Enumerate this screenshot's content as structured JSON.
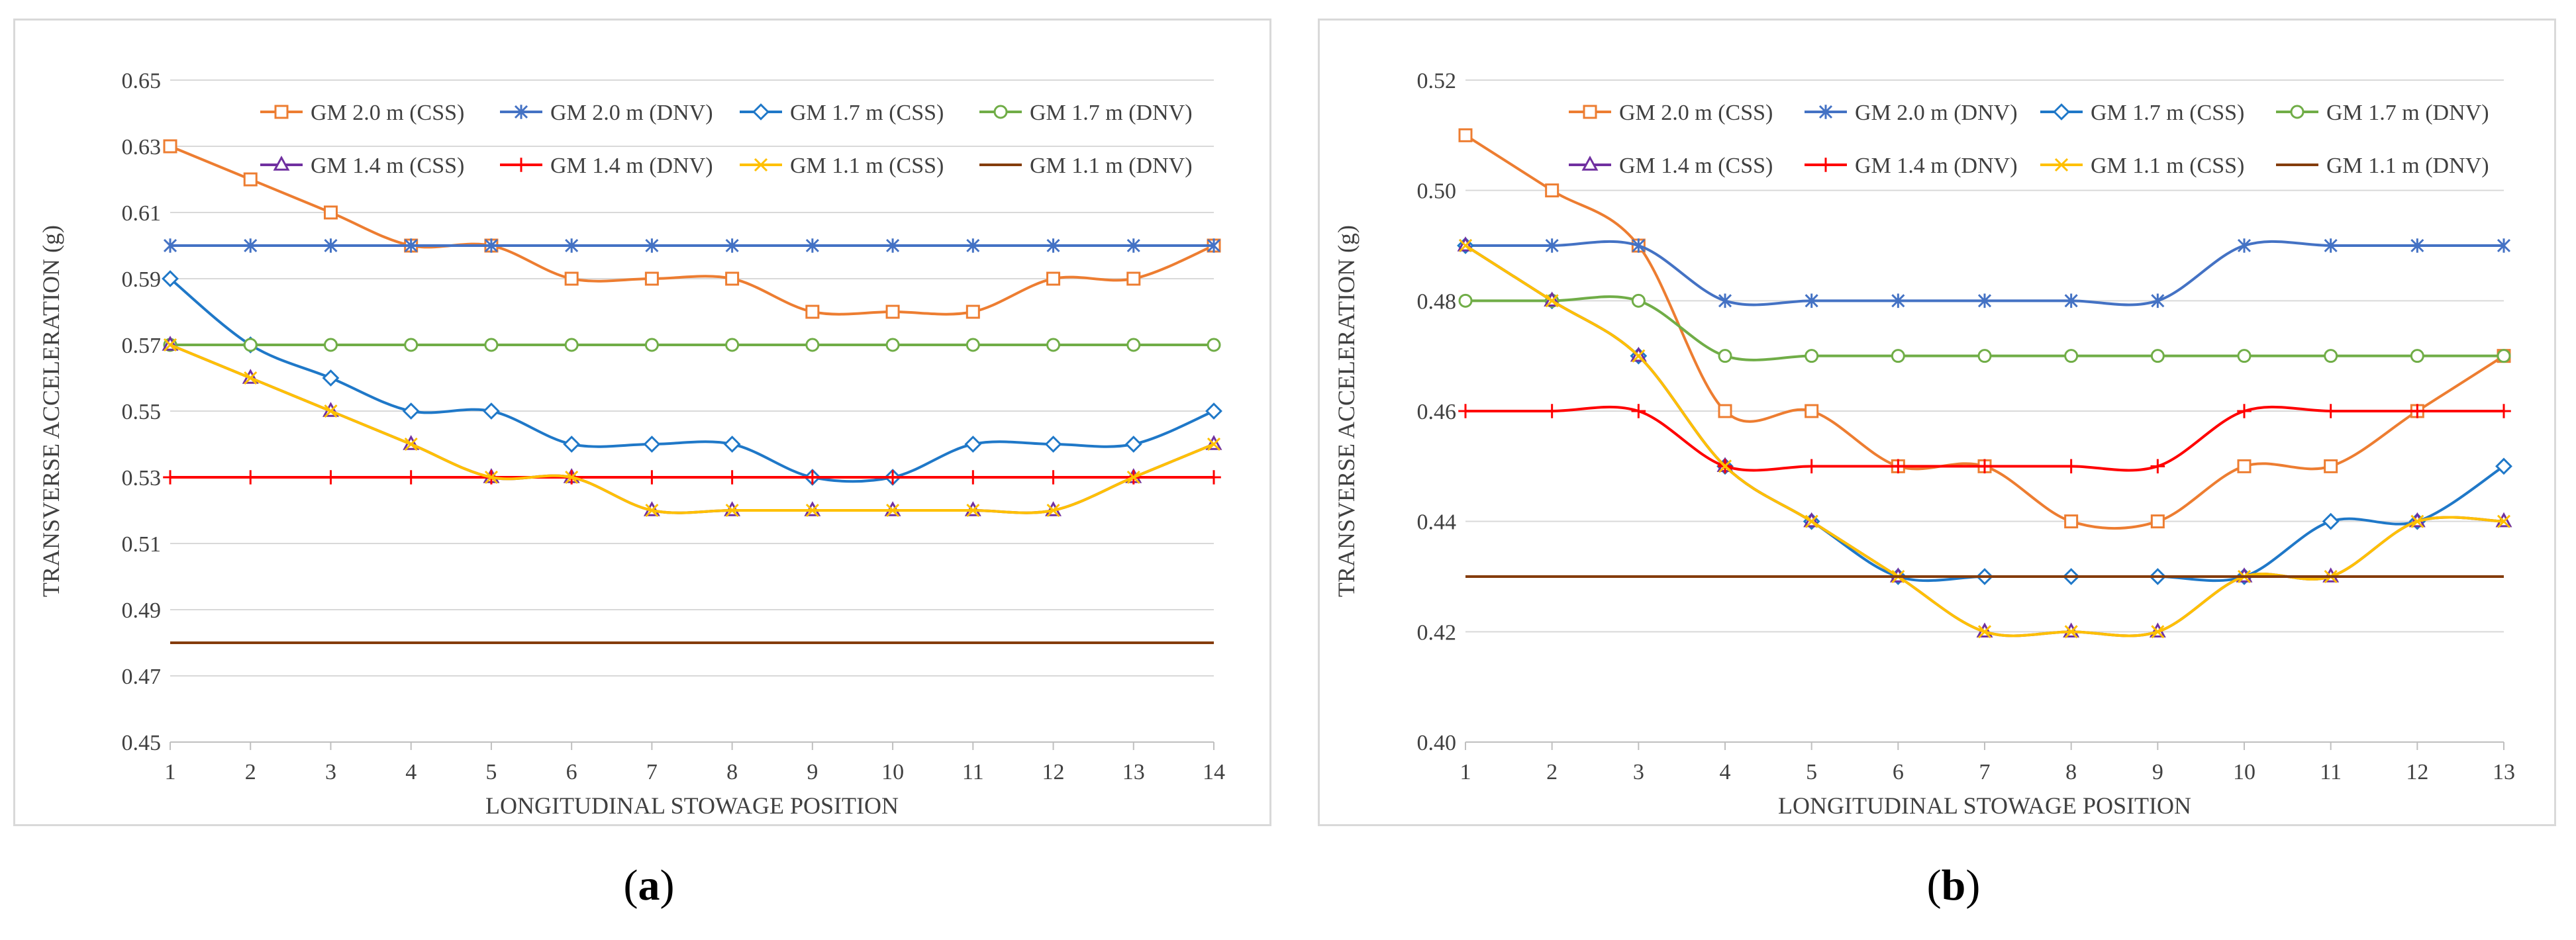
{
  "chart_data": [
    {
      "type": "line",
      "xlabel": "LONGITUDINAL STOWAGE POSITION",
      "ylabel": "TRANSVERSE ACCELERATION  (g)",
      "x": [
        1,
        2,
        3,
        4,
        5,
        6,
        7,
        8,
        9,
        10,
        11,
        12,
        13,
        14
      ],
      "ylim": [
        0.45,
        0.65
      ],
      "yticks": [
        0.45,
        0.47,
        0.49,
        0.51,
        0.53,
        0.55,
        0.57,
        0.59,
        0.61,
        0.63,
        0.65
      ],
      "ytick_labels": [
        "0.45",
        "0.47",
        "0.49",
        "0.51",
        "0.53",
        "0.55",
        "0.57",
        "0.59",
        "0.61",
        "0.63",
        "0.65"
      ],
      "grid": true,
      "legend": "top",
      "series": [
        {
          "name": "GM 2.0 m (CSS)",
          "color": "#ed7d31",
          "marker": "square",
          "values": [
            0.63,
            0.62,
            0.61,
            0.6,
            0.6,
            0.59,
            0.59,
            0.59,
            0.58,
            0.58,
            0.58,
            0.59,
            0.59,
            0.6
          ]
        },
        {
          "name": "GM 2.0 m (DNV)",
          "color": "#4472c4",
          "marker": "asterisk",
          "values": [
            0.6,
            0.6,
            0.6,
            0.6,
            0.6,
            0.6,
            0.6,
            0.6,
            0.6,
            0.6,
            0.6,
            0.6,
            0.6,
            0.6
          ]
        },
        {
          "name": "GM 1.7 m (CSS)",
          "color": "#1f78c8",
          "marker": "diamond",
          "values": [
            0.59,
            0.57,
            0.56,
            0.55,
            0.55,
            0.54,
            0.54,
            0.54,
            0.53,
            0.53,
            0.54,
            0.54,
            0.54,
            0.55
          ]
        },
        {
          "name": "GM 1.7 m (DNV)",
          "color": "#70ad47",
          "marker": "circle",
          "values": [
            0.57,
            0.57,
            0.57,
            0.57,
            0.57,
            0.57,
            0.57,
            0.57,
            0.57,
            0.57,
            0.57,
            0.57,
            0.57,
            0.57
          ]
        },
        {
          "name": "GM 1.4 m (CSS)",
          "color": "#7030a0",
          "marker": "triangle",
          "values": [
            0.57,
            0.56,
            0.55,
            0.54,
            0.53,
            0.53,
            0.52,
            0.52,
            0.52,
            0.52,
            0.52,
            0.52,
            0.53,
            0.54
          ]
        },
        {
          "name": "GM 1.4 m (DNV)",
          "color": "#ff0000",
          "marker": "plus",
          "values": [
            0.53,
            0.53,
            0.53,
            0.53,
            0.53,
            0.53,
            0.53,
            0.53,
            0.53,
            0.53,
            0.53,
            0.53,
            0.53,
            0.53
          ]
        },
        {
          "name": "GM 1.1 m (CSS)",
          "color": "#ffc000",
          "marker": "x",
          "values": [
            0.57,
            0.56,
            0.55,
            0.54,
            0.53,
            0.53,
            0.52,
            0.52,
            0.52,
            0.52,
            0.52,
            0.52,
            0.53,
            0.54
          ]
        },
        {
          "name": "GM 1.1 m (DNV)",
          "color": "#843c0c",
          "marker": "none",
          "values": [
            0.48,
            0.48,
            0.48,
            0.48,
            0.48,
            0.48,
            0.48,
            0.48,
            0.48,
            0.48,
            0.48,
            0.48,
            0.48,
            0.48
          ]
        }
      ]
    },
    {
      "type": "line",
      "xlabel": "LONGITUDINAL STOWAGE POSITION",
      "ylabel": "TRANSVERSE ACCELERATION  (g)",
      "x": [
        1,
        2,
        3,
        4,
        5,
        6,
        7,
        8,
        9,
        10,
        11,
        12,
        13
      ],
      "ylim": [
        0.4,
        0.52
      ],
      "yticks": [
        0.4,
        0.42,
        0.44,
        0.46,
        0.48,
        0.5,
        0.52
      ],
      "ytick_labels": [
        "0.40",
        "0.42",
        "0.44",
        "0.46",
        "0.48",
        "0.50",
        "0.52"
      ],
      "grid": true,
      "legend": "top",
      "series": [
        {
          "name": "GM 2.0 m (CSS)",
          "color": "#ed7d31",
          "marker": "square",
          "values": [
            0.51,
            0.5,
            0.49,
            0.46,
            0.46,
            0.45,
            0.45,
            0.44,
            0.44,
            0.45,
            0.45,
            0.46,
            0.47
          ]
        },
        {
          "name": "GM 2.0 m (DNV)",
          "color": "#4472c4",
          "marker": "asterisk",
          "values": [
            0.49,
            0.49,
            0.49,
            0.48,
            0.48,
            0.48,
            0.48,
            0.48,
            0.48,
            0.49,
            0.49,
            0.49,
            0.49
          ]
        },
        {
          "name": "GM 1.7 m (CSS)",
          "color": "#1f78c8",
          "marker": "diamond",
          "values": [
            0.49,
            0.48,
            0.47,
            0.45,
            0.44,
            0.43,
            0.43,
            0.43,
            0.43,
            0.43,
            0.44,
            0.44,
            0.45
          ]
        },
        {
          "name": "GM 1.7 m (DNV)",
          "color": "#70ad47",
          "marker": "circle",
          "values": [
            0.48,
            0.48,
            0.48,
            0.47,
            0.47,
            0.47,
            0.47,
            0.47,
            0.47,
            0.47,
            0.47,
            0.47,
            0.47
          ]
        },
        {
          "name": "GM 1.4 m (CSS)",
          "color": "#7030a0",
          "marker": "triangle",
          "values": [
            0.49,
            0.48,
            0.47,
            0.45,
            0.44,
            0.43,
            0.42,
            0.42,
            0.42,
            0.43,
            0.43,
            0.44,
            0.44
          ]
        },
        {
          "name": "GM 1.4 m (DNV)",
          "color": "#ff0000",
          "marker": "plus",
          "values": [
            0.46,
            0.46,
            0.46,
            0.45,
            0.45,
            0.45,
            0.45,
            0.45,
            0.45,
            0.46,
            0.46,
            0.46,
            0.46
          ]
        },
        {
          "name": "GM 1.1 m (CSS)",
          "color": "#ffc000",
          "marker": "x",
          "values": [
            0.49,
            0.48,
            0.47,
            0.45,
            0.44,
            0.43,
            0.42,
            0.42,
            0.42,
            0.43,
            0.43,
            0.44,
            0.44
          ]
        },
        {
          "name": "GM 1.1 m (DNV)",
          "color": "#843c0c",
          "marker": "none",
          "values": [
            0.43,
            0.43,
            0.43,
            0.43,
            0.43,
            0.43,
            0.43,
            0.43,
            0.43,
            0.43,
            0.43,
            0.43,
            0.43
          ]
        }
      ]
    }
  ],
  "captions": {
    "a": {
      "open": "(",
      "letter": "a",
      "close": ")"
    },
    "b": {
      "open": "(",
      "letter": "b",
      "close": ")"
    }
  }
}
